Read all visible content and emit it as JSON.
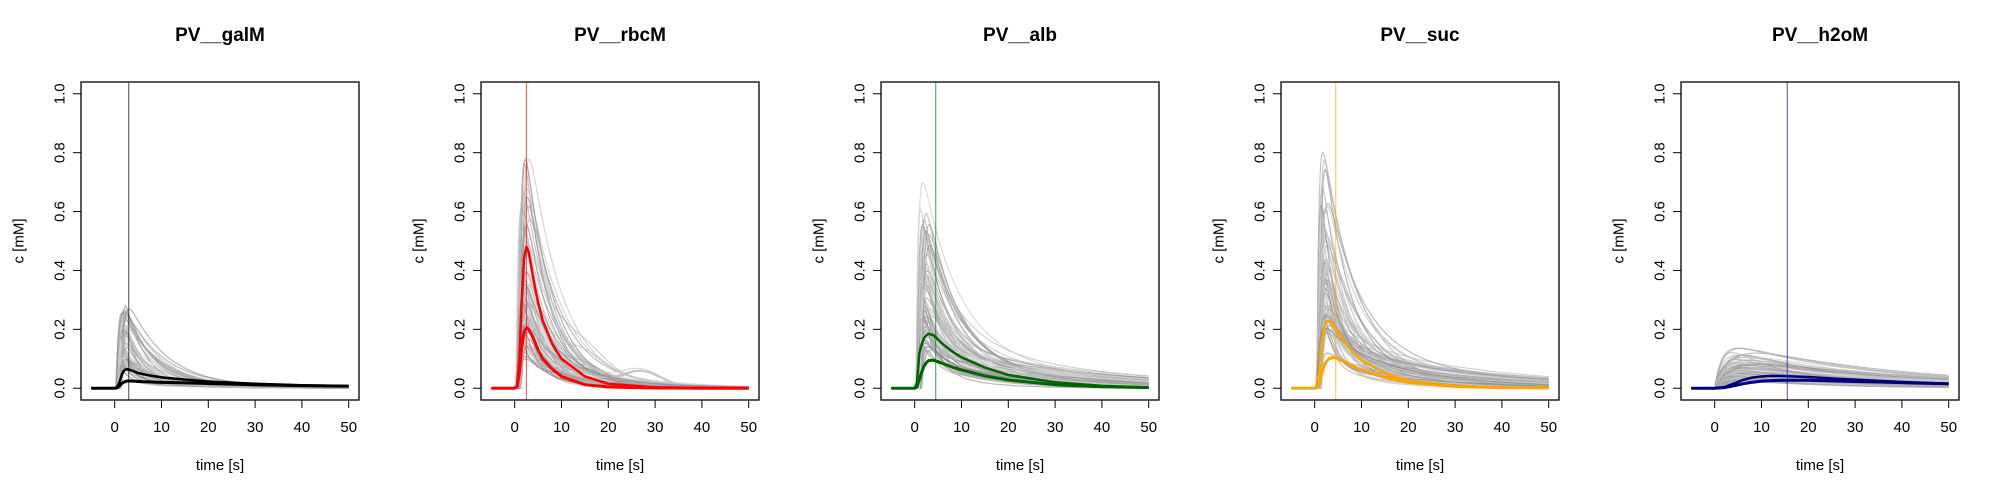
{
  "chart_data": [
    {
      "type": "line",
      "title": "PV__galM",
      "xlabel": "time [s]",
      "ylabel": "c [mM]",
      "xlim": [
        -5,
        50
      ],
      "ylim": [
        0,
        1.0
      ],
      "xticks": [
        "0",
        "10",
        "20",
        "30",
        "40",
        "50"
      ],
      "yticks": [
        "0.0",
        "0.2",
        "0.4",
        "0.6",
        "0.8",
        "1.0"
      ],
      "grid": false,
      "color": "#000000",
      "vline_x": 3.0,
      "bg_peak_max": 0.35,
      "series": [
        {
          "x": [
            -5,
            0,
            0.5,
            1.0,
            1.5,
            2.0,
            2.5,
            3.0,
            4,
            5,
            6,
            8,
            10,
            15,
            20,
            30,
            40,
            50
          ],
          "y": [
            0,
            0,
            0.003,
            0.02,
            0.045,
            0.06,
            0.065,
            0.064,
            0.058,
            0.052,
            0.048,
            0.042,
            0.037,
            0.029,
            0.023,
            0.015,
            0.01,
            0.007
          ]
        },
        {
          "x": [
            -5,
            0,
            0.5,
            1.0,
            1.5,
            2.0,
            2.5,
            3.0,
            4,
            5,
            6,
            8,
            10,
            15,
            20,
            30,
            40,
            50
          ],
          "y": [
            0,
            0,
            0.001,
            0.008,
            0.016,
            0.021,
            0.024,
            0.025,
            0.024,
            0.023,
            0.022,
            0.021,
            0.02,
            0.018,
            0.016,
            0.012,
            0.009,
            0.007
          ]
        }
      ]
    },
    {
      "type": "line",
      "title": "PV__rbcM",
      "xlabel": "time [s]",
      "ylabel": "c [mM]",
      "xlim": [
        -5,
        50
      ],
      "ylim": [
        0,
        1.0
      ],
      "xticks": [
        "0",
        "10",
        "20",
        "30",
        "40",
        "50"
      ],
      "yticks": [
        "0.0",
        "0.2",
        "0.4",
        "0.6",
        "0.8",
        "1.0"
      ],
      "grid": false,
      "color": "#ff0000",
      "vline_x": 2.5,
      "bg_peak_max": 1.0,
      "series": [
        {
          "x": [
            -5,
            0,
            0.5,
            1.0,
            1.5,
            2.0,
            2.5,
            3.0,
            4,
            5,
            6,
            8,
            10,
            15,
            20,
            30,
            40,
            50
          ],
          "y": [
            0,
            0,
            0.01,
            0.1,
            0.3,
            0.44,
            0.48,
            0.46,
            0.37,
            0.29,
            0.23,
            0.15,
            0.1,
            0.04,
            0.015,
            0.003,
            0.001,
            0
          ]
        },
        {
          "x": [
            -5,
            0,
            0.5,
            1.0,
            1.5,
            2.0,
            2.5,
            3.0,
            4,
            5,
            6,
            8,
            10,
            15,
            20,
            30,
            40,
            50
          ],
          "y": [
            0,
            0,
            0.005,
            0.05,
            0.14,
            0.19,
            0.205,
            0.2,
            0.17,
            0.13,
            0.1,
            0.065,
            0.04,
            0.012,
            0.004,
            0.001,
            0,
            0
          ]
        }
      ]
    },
    {
      "type": "line",
      "title": "PV__alb",
      "xlabel": "time [s]",
      "ylabel": "c [mM]",
      "xlim": [
        -5,
        50
      ],
      "ylim": [
        0,
        1.0
      ],
      "xticks": [
        "0",
        "10",
        "20",
        "30",
        "40",
        "50"
      ],
      "yticks": [
        "0.0",
        "0.2",
        "0.4",
        "0.6",
        "0.8",
        "1.0"
      ],
      "grid": false,
      "color": "#006400",
      "vline_x": 4.5,
      "bg_peak_max": 0.73,
      "series": [
        {
          "x": [
            -5,
            0,
            0.5,
            1.0,
            1.5,
            2.0,
            2.5,
            3.0,
            4,
            5,
            6,
            8,
            10,
            15,
            20,
            30,
            40,
            50
          ],
          "y": [
            0,
            0,
            0.02,
            0.12,
            0.15,
            0.17,
            0.18,
            0.185,
            0.18,
            0.165,
            0.15,
            0.125,
            0.105,
            0.07,
            0.045,
            0.02,
            0.008,
            0.003
          ]
        },
        {
          "x": [
            -5,
            0,
            0.5,
            1.0,
            1.5,
            2.0,
            2.5,
            3.0,
            4,
            5,
            6,
            8,
            10,
            15,
            20,
            30,
            40,
            50
          ],
          "y": [
            0,
            0,
            0.005,
            0.03,
            0.055,
            0.075,
            0.087,
            0.094,
            0.095,
            0.09,
            0.084,
            0.072,
            0.062,
            0.042,
            0.028,
            0.012,
            0.005,
            0.002
          ]
        }
      ]
    },
    {
      "type": "line",
      "title": "PV__suc",
      "xlabel": "time [s]",
      "ylabel": "c [mM]",
      "xlim": [
        -5,
        50
      ],
      "ylim": [
        0,
        1.0
      ],
      "xticks": [
        "0",
        "10",
        "20",
        "30",
        "40",
        "50"
      ],
      "yticks": [
        "0.0",
        "0.2",
        "0.4",
        "0.6",
        "0.8",
        "1.0"
      ],
      "grid": false,
      "color": "#ffa500",
      "vline_x": 4.5,
      "bg_peak_max": 0.87,
      "series": [
        {
          "x": [
            -5,
            0,
            0.5,
            1.0,
            1.5,
            2.0,
            2.5,
            3.0,
            4,
            5,
            6,
            8,
            10,
            15,
            20,
            30,
            40,
            50
          ],
          "y": [
            0,
            0,
            0.01,
            0.06,
            0.14,
            0.2,
            0.225,
            0.23,
            0.215,
            0.19,
            0.165,
            0.125,
            0.095,
            0.05,
            0.025,
            0.007,
            0.002,
            0.001
          ]
        },
        {
          "x": [
            -5,
            0,
            0.5,
            1.0,
            1.5,
            2.0,
            2.5,
            3.0,
            4,
            5,
            6,
            8,
            10,
            15,
            20,
            30,
            40,
            50
          ],
          "y": [
            0,
            0,
            0.003,
            0.02,
            0.05,
            0.075,
            0.09,
            0.1,
            0.105,
            0.1,
            0.092,
            0.076,
            0.062,
            0.036,
            0.02,
            0.006,
            0.002,
            0.001
          ]
        }
      ]
    },
    {
      "type": "line",
      "title": "PV__h2oM",
      "xlabel": "time [s]",
      "ylabel": "c [mM]",
      "xlim": [
        -5,
        50
      ],
      "ylim": [
        0,
        1.0
      ],
      "xticks": [
        "0",
        "10",
        "20",
        "30",
        "40",
        "50"
      ],
      "yticks": [
        "0.0",
        "0.2",
        "0.4",
        "0.6",
        "0.8",
        "1.0"
      ],
      "grid": false,
      "color": "#000080",
      "vline_x": 15.5,
      "bg_peak_max": 0.16,
      "series": [
        {
          "x": [
            -5,
            0,
            2,
            4,
            6,
            8,
            10,
            12,
            15,
            20,
            25,
            30,
            35,
            40,
            45,
            50
          ],
          "y": [
            0,
            0,
            0.004,
            0.015,
            0.028,
            0.036,
            0.04,
            0.042,
            0.041,
            0.038,
            0.033,
            0.029,
            0.025,
            0.021,
            0.018,
            0.015
          ]
        },
        {
          "x": [
            -5,
            0,
            2,
            4,
            6,
            8,
            10,
            12,
            15,
            20,
            25,
            30,
            35,
            40,
            45,
            50
          ],
          "y": [
            0,
            0,
            0.002,
            0.008,
            0.015,
            0.02,
            0.024,
            0.026,
            0.027,
            0.027,
            0.025,
            0.023,
            0.021,
            0.019,
            0.017,
            0.015
          ]
        }
      ]
    }
  ]
}
